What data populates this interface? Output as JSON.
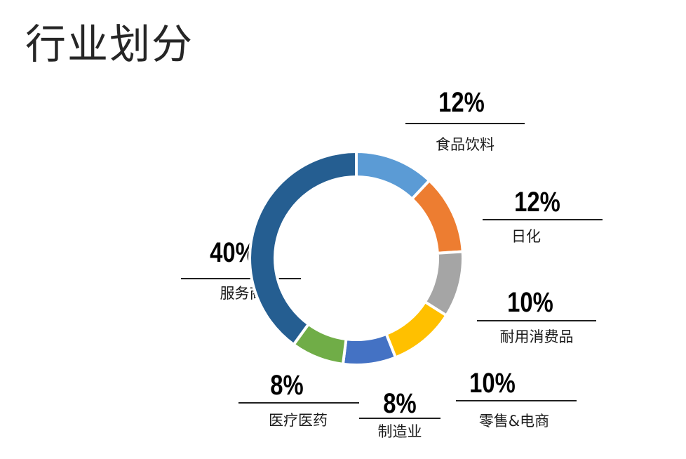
{
  "page": {
    "title": "行业划分"
  },
  "chart_data": {
    "type": "pie",
    "subtype": "donut",
    "title": "行业划分",
    "start_angle_deg": 0,
    "direction": "clockwise",
    "slices": [
      {
        "label": "食品饮料",
        "value": 12,
        "display": "12%",
        "color": "#5B9BD5"
      },
      {
        "label": "日化",
        "value": 12,
        "display": "12%",
        "color": "#ED7D31"
      },
      {
        "label": "耐用消费品",
        "value": 10,
        "display": "10%",
        "color": "#A5A5A5"
      },
      {
        "label": "零售&电商",
        "value": 10,
        "display": "10%",
        "color": "#FFC000"
      },
      {
        "label": "制造业",
        "value": 8,
        "display": "8%",
        "color": "#4472C4"
      },
      {
        "label": "医疗医药",
        "value": 8,
        "display": "8%",
        "color": "#70AD47"
      },
      {
        "label": "服务商",
        "value": 40,
        "display": "40%",
        "color": "#255E91"
      }
    ],
    "legend": "none",
    "data_labels": "outside with leader underline"
  }
}
